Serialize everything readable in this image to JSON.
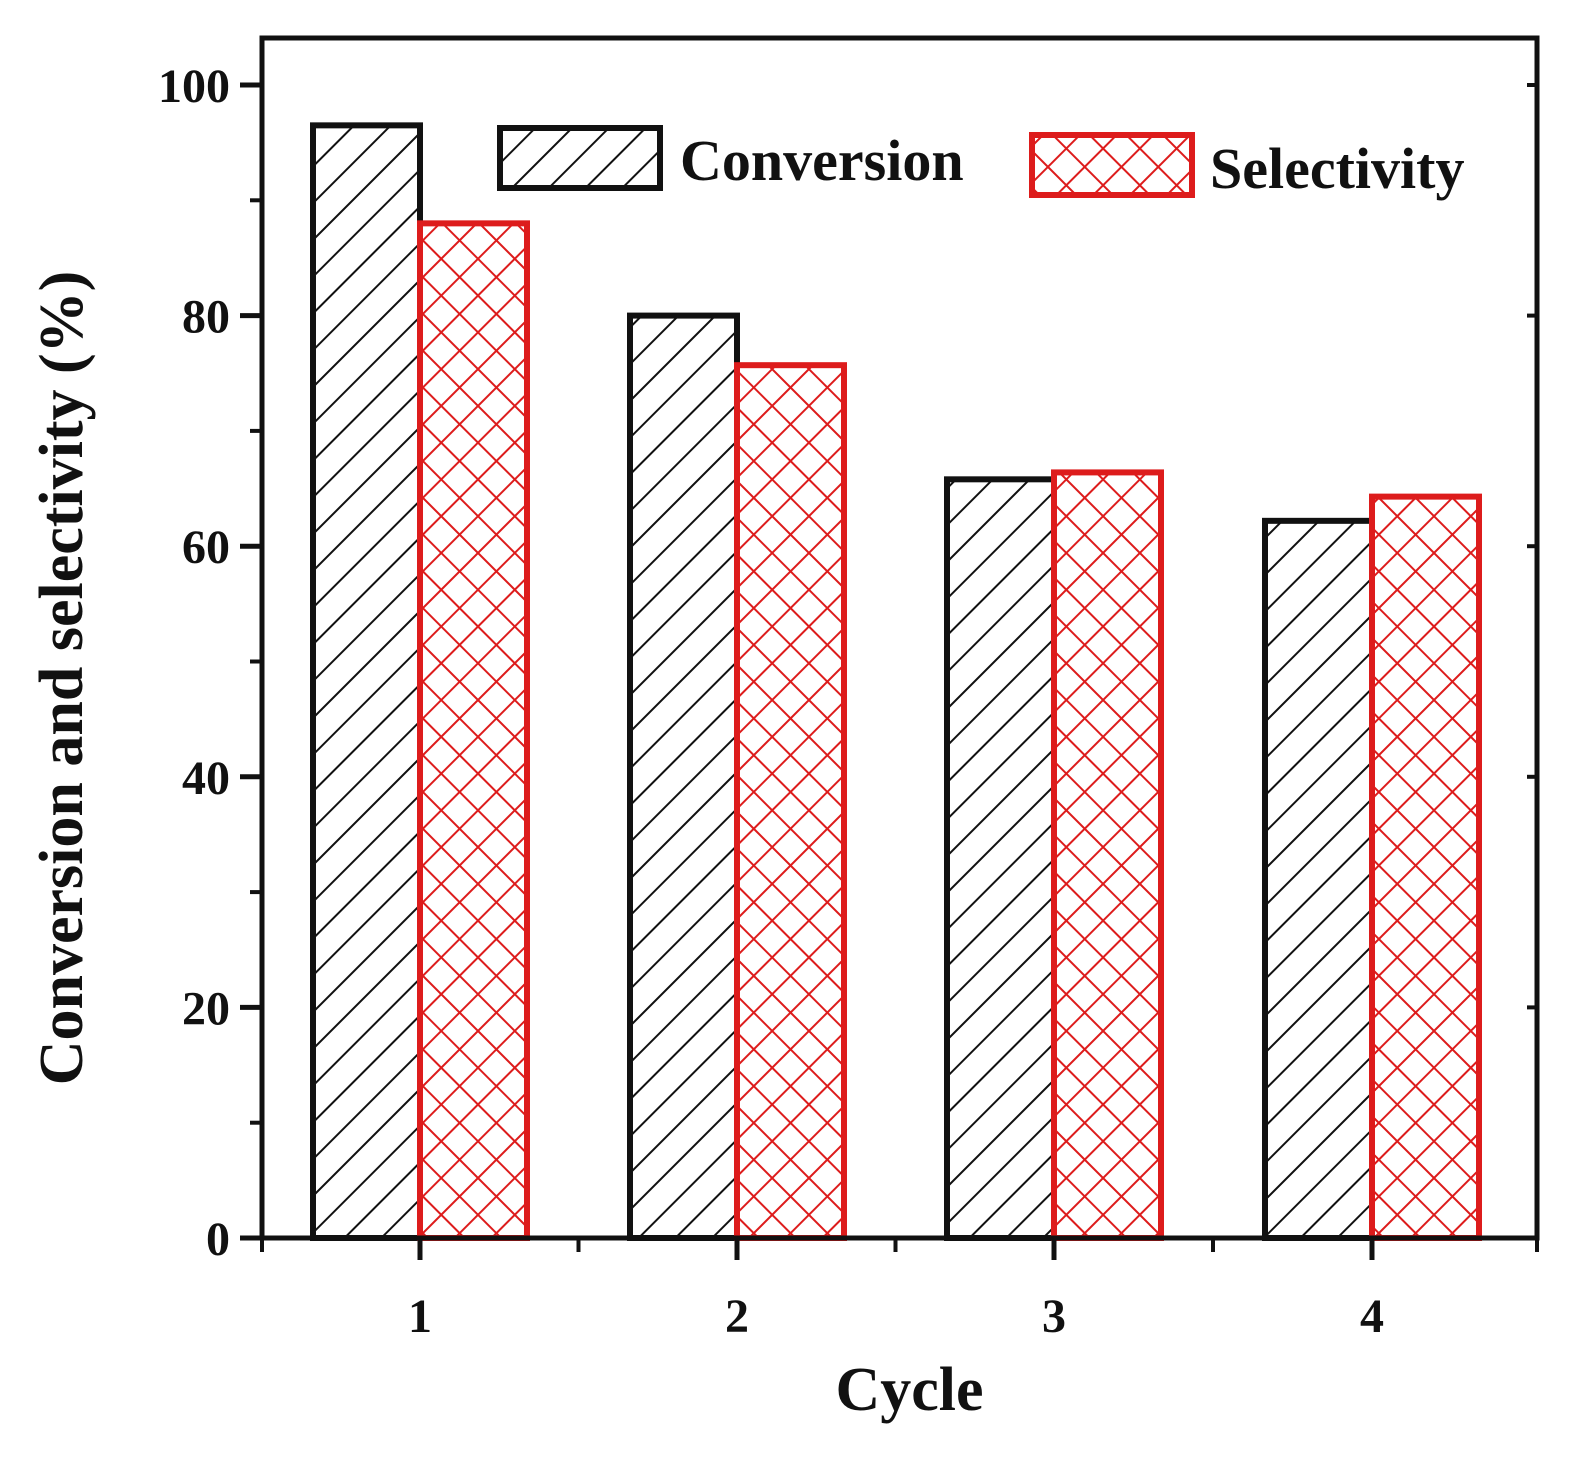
{
  "chart_data": {
    "type": "bar",
    "categories": [
      "1",
      "2",
      "3",
      "4"
    ],
    "series": [
      {
        "name": "Conversion",
        "values": [
          96.5,
          80.0,
          65.8,
          62.2
        ],
        "color": "#111111",
        "pattern": "diagonal-hatch"
      },
      {
        "name": "Selectivity",
        "values": [
          88.0,
          75.7,
          66.4,
          64.3
        ],
        "color": "#dd1c1c",
        "pattern": "cross-hatch"
      }
    ],
    "xlabel": "Cycle",
    "ylabel": "Conversion and selectivity (%)",
    "ylim": [
      0,
      100
    ],
    "yticks": [
      0,
      20,
      40,
      60,
      80,
      100
    ],
    "legend": {
      "placement": "top-right",
      "orientation": "horizontal"
    },
    "grid": false
  }
}
